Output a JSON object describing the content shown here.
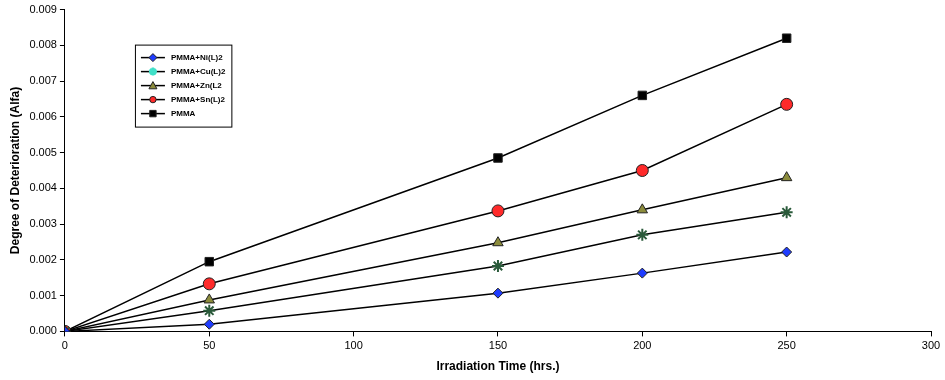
{
  "chart_data": {
    "type": "line",
    "x_label": "Irradiation Time (hrs.)",
    "y_label": "Degree of Deterioration (Alfa)",
    "x": [
      0,
      50,
      150,
      200,
      250
    ],
    "series": [
      {
        "name": "PMMA+Ni(L)2",
        "color": "#1f3cff",
        "marker": "diamond",
        "values": [
          0,
          0.0002,
          0.00107,
          0.00163,
          0.00222
        ]
      },
      {
        "name": "PMMA+Cu(L)2",
        "color": "#40e0c8",
        "marker": "star",
        "values": [
          0,
          0.00058,
          0.00183,
          0.0027,
          0.00333
        ]
      },
      {
        "name": "PMMA+Zn(L2",
        "color": "#8c8c3c",
        "marker": "triangle",
        "values": [
          0,
          0.00088,
          0.00248,
          0.0034,
          0.0043
        ]
      },
      {
        "name": "PMMA+Sn(L)2",
        "color": "#ff2a2a",
        "marker": "circle",
        "values": [
          0,
          0.00133,
          0.00337,
          0.0045,
          0.00635
        ]
      },
      {
        "name": "PMMA",
        "color": "#000000",
        "marker": "square",
        "values": [
          0,
          0.00195,
          0.00485,
          0.0066,
          0.0082
        ]
      }
    ],
    "xlim": [
      0,
      300
    ],
    "xticks": [
      0,
      50,
      100,
      150,
      200,
      250,
      300
    ],
    "ylim": [
      0,
      0.009
    ],
    "yticks": [
      {
        "value": 0,
        "label": "0.000"
      },
      0.001,
      0.002,
      0.003,
      0.004,
      0.005,
      0.006,
      0.007,
      0.008,
      0.009
    ],
    "grid": false,
    "legend": "upper left"
  }
}
